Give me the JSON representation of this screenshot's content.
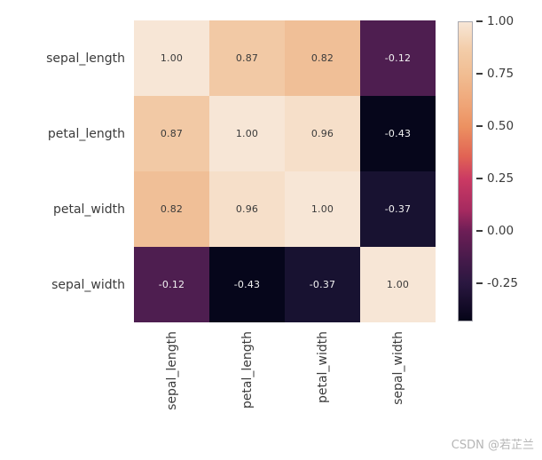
{
  "chart_data": {
    "type": "heatmap",
    "title": "",
    "row_labels": [
      "sepal_length",
      "petal_length",
      "petal_width",
      "sepal_width"
    ],
    "col_labels": [
      "sepal_length",
      "petal_length",
      "petal_width",
      "sepal_width"
    ],
    "matrix": [
      [
        1.0,
        0.87,
        0.82,
        -0.12
      ],
      [
        0.87,
        1.0,
        0.96,
        -0.43
      ],
      [
        0.82,
        0.96,
        1.0,
        -0.37
      ],
      [
        -0.12,
        -0.43,
        -0.37,
        1.0
      ]
    ],
    "cell_colors": [
      [
        "#f7e6d6",
        "#f2c9a5",
        "#f0bf97",
        "#4e1e50"
      ],
      [
        "#f2c9a5",
        "#f7e6d6",
        "#f6dfc9",
        "#06061b"
      ],
      [
        "#f0bf97",
        "#f6dfc9",
        "#f7e6d6",
        "#181231"
      ],
      [
        "#4e1e50",
        "#06061b",
        "#181231",
        "#f7e6d6"
      ]
    ],
    "cell_text_colors": [
      [
        "#3a3a3a",
        "#3a3a3a",
        "#3a3a3a",
        "#f2f2f2"
      ],
      [
        "#3a3a3a",
        "#3a3a3a",
        "#3a3a3a",
        "#f2f2f2"
      ],
      [
        "#3a3a3a",
        "#3a3a3a",
        "#3a3a3a",
        "#f2f2f2"
      ],
      [
        "#f2f2f2",
        "#f2f2f2",
        "#f2f2f2",
        "#3a3a3a"
      ]
    ],
    "label_color": "#3b3b3b",
    "colorbar": {
      "min": -0.43,
      "max": 1.0,
      "tick_values": [
        1.0,
        0.75,
        0.5,
        0.25,
        0.0,
        -0.25
      ],
      "tick_labels": [
        "1.00",
        "0.75",
        "0.50",
        "0.25",
        "0.00",
        "-0.25"
      ],
      "colormap_name": "rocket",
      "gradient_stops": [
        {
          "pos": 0,
          "color": "#f7e6d6"
        },
        {
          "pos": 9,
          "color": "#f3cda9"
        },
        {
          "pos": 17.5,
          "color": "#f1bd92"
        },
        {
          "pos": 28,
          "color": "#efa476"
        },
        {
          "pos": 35,
          "color": "#ec9161"
        },
        {
          "pos": 45,
          "color": "#e16354"
        },
        {
          "pos": 52.5,
          "color": "#cb3a63"
        },
        {
          "pos": 63,
          "color": "#a62a60"
        },
        {
          "pos": 70,
          "color": "#6d1e56"
        },
        {
          "pos": 80,
          "color": "#441a4a"
        },
        {
          "pos": 87.5,
          "color": "#2a1740"
        },
        {
          "pos": 100,
          "color": "#050418"
        }
      ],
      "legend_position": "right"
    },
    "grid": false
  },
  "watermark": {
    "text": "CSDN @若芷兰",
    "color": "#b5b5b5"
  }
}
